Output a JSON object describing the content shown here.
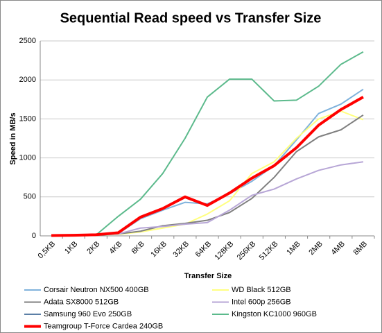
{
  "chart_data": {
    "type": "line",
    "title": "Sequential Read speed vs Transfer Size",
    "xlabel": "Transfer Size",
    "ylabel": "Speed in MB/s",
    "categories": [
      "0,5KB",
      "1KB",
      "2KB",
      "4KB",
      "8KB",
      "16KB",
      "32KB",
      "64KB",
      "128KB",
      "256KB",
      "512KB",
      "1MB",
      "2MB",
      "4MB",
      "8MB"
    ],
    "ylim": [
      0,
      2500
    ],
    "yticks": [
      0,
      500,
      1000,
      1500,
      2000,
      2500
    ],
    "grid": true,
    "series": [
      {
        "name": "Corsair Neutron NX500 400GB",
        "color": "#7fb2dc",
        "values": [
          5,
          8,
          10,
          30,
          220,
          330,
          430,
          410,
          540,
          700,
          900,
          1230,
          1570,
          1690,
          1880
        ]
      },
      {
        "name": "WD Black 512GB",
        "color": "#ffff80",
        "values": [
          5,
          8,
          10,
          20,
          50,
          100,
          150,
          280,
          450,
          800,
          950,
          1250,
          1500,
          1600,
          1490
        ]
      },
      {
        "name": "Adata SX8000 512GB",
        "color": "#808080",
        "values": [
          5,
          8,
          10,
          25,
          60,
          130,
          160,
          200,
          300,
          480,
          750,
          1080,
          1270,
          1360,
          1550
        ]
      },
      {
        "name": "Intel 600p 256GB",
        "color": "#b7a6d6",
        "values": [
          5,
          8,
          10,
          25,
          100,
          120,
          150,
          170,
          330,
          520,
          600,
          730,
          840,
          910,
          950
        ]
      },
      {
        "name": "Samsung 960 Evo 250GB",
        "color": "#5b7fa6",
        "values": [
          5,
          8,
          12,
          35,
          235,
          345,
          490,
          385,
          545,
          735,
          895,
          1125,
          1415,
          1615,
          1775
        ]
      },
      {
        "name": "Kingston KC1000 960GB",
        "color": "#5cba8c",
        "values": [
          5,
          8,
          10,
          250,
          470,
          800,
          1250,
          1780,
          2010,
          2010,
          1730,
          1740,
          1920,
          2200,
          2360
        ]
      },
      {
        "name": "Teamgroup T-Force Cardea 240GB",
        "color": "#ff0000",
        "width": 4,
        "values": [
          5,
          8,
          15,
          40,
          240,
          350,
          500,
          390,
          550,
          740,
          900,
          1130,
          1420,
          1620,
          1780
        ]
      }
    ]
  }
}
